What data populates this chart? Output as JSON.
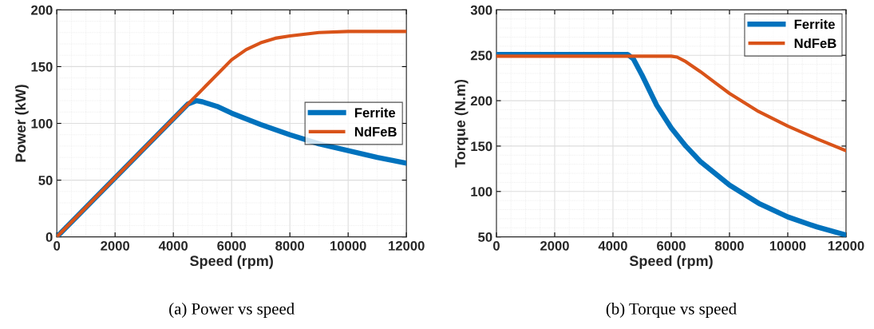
{
  "chart_data": [
    {
      "type": "line",
      "xlabel": "Speed (rpm)",
      "ylabel": "Power (kW)",
      "annotations": [
        "(a) Power vs speed"
      ],
      "xlim": [
        0,
        12000
      ],
      "xticks": [
        0,
        2000,
        4000,
        6000,
        8000,
        10000,
        12000
      ],
      "ylim": [
        0,
        200
      ],
      "yticks": [
        0,
        50,
        100,
        150,
        200
      ],
      "grid": true,
      "legend": "right",
      "line_style": "solid",
      "series": [
        {
          "name": "Ferrite",
          "color": "#0072bd",
          "x": [
            0,
            1000,
            2000,
            3000,
            4000,
            4500,
            4800,
            5000,
            5500,
            6000,
            7000,
            8000,
            9000,
            10000,
            11000,
            12000
          ],
          "values": [
            0,
            26,
            52,
            78,
            104,
            117,
            120,
            119,
            115,
            109,
            99,
            90,
            82,
            76,
            70,
            65
          ]
        },
        {
          "name": "NdFeB",
          "color": "#d95319",
          "x": [
            0,
            1000,
            2000,
            3000,
            4000,
            5000,
            6000,
            6500,
            7000,
            7500,
            8000,
            9000,
            10000,
            11000,
            12000
          ],
          "values": [
            0,
            26,
            52,
            78,
            104,
            130,
            156,
            165,
            171,
            175,
            177,
            180,
            181,
            181,
            181
          ]
        }
      ]
    },
    {
      "type": "line",
      "xlabel": "Speed (rpm)",
      "ylabel": "Torque (N.m)",
      "annotations": [
        "(b) Torque vs speed"
      ],
      "xlim": [
        0,
        12000
      ],
      "xticks": [
        0,
        2000,
        4000,
        6000,
        8000,
        10000,
        12000
      ],
      "ylim": [
        50,
        300
      ],
      "yticks": [
        50,
        100,
        150,
        200,
        250,
        300
      ],
      "grid": true,
      "legend": "top right",
      "line_style": "solid",
      "series": [
        {
          "name": "Ferrite",
          "color": "#0072bd",
          "x": [
            0,
            2000,
            4000,
            4500,
            4700,
            5000,
            5500,
            6000,
            6500,
            7000,
            8000,
            9000,
            10000,
            11000,
            12000
          ],
          "values": [
            251,
            251,
            251,
            251,
            246,
            228,
            195,
            170,
            150,
            133,
            107,
            87,
            72,
            61,
            52
          ]
        },
        {
          "name": "NdFeB",
          "color": "#d95319",
          "x": [
            0,
            2000,
            4000,
            6000,
            6200,
            6500,
            7000,
            7500,
            8000,
            9000,
            10000,
            11000,
            12000
          ],
          "values": [
            249,
            249,
            249,
            249,
            248,
            243,
            232,
            220,
            208,
            188,
            172,
            158,
            145
          ]
        }
      ]
    }
  ]
}
